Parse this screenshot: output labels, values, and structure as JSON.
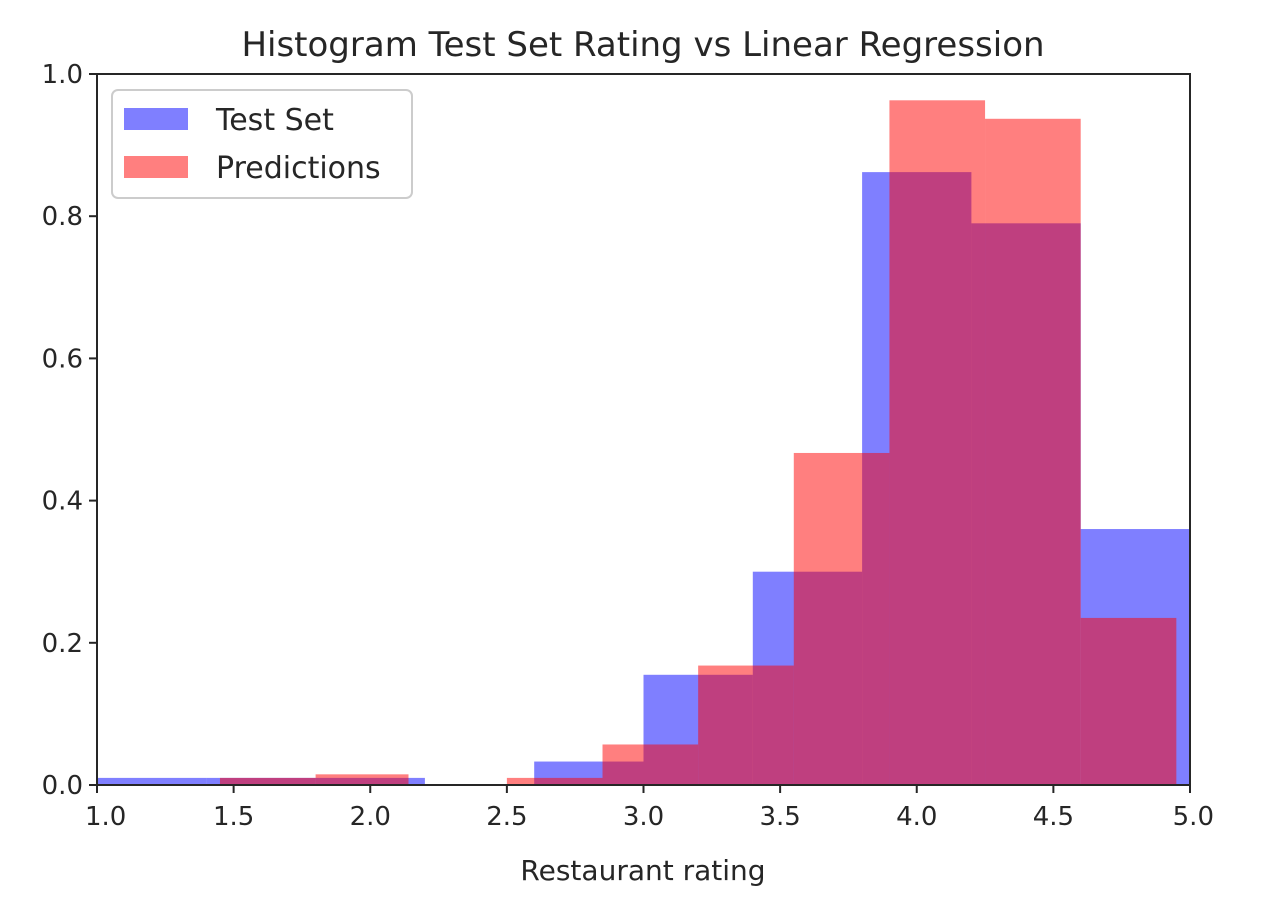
{
  "chart_data": {
    "type": "bar",
    "title": "Histogram Test Set Rating vs Linear Regression",
    "xlabel": "Restaurant rating",
    "ylabel": "",
    "xlim": [
      1.0,
      5.0
    ],
    "ylim": [
      0.0,
      1.0
    ],
    "xticks": [
      "1.0",
      "1.5",
      "2.0",
      "2.5",
      "3.0",
      "3.5",
      "4.0",
      "4.5",
      "5.0"
    ],
    "yticks": [
      "0.0",
      "0.2",
      "0.4",
      "0.6",
      "0.8",
      "1.0"
    ],
    "legend_position": "top-left",
    "grid": false,
    "series": [
      {
        "name": "Test Set",
        "color": "#0000ff",
        "opacity": 0.5,
        "bins": [
          {
            "x0": 1.0,
            "x1": 1.4,
            "value": 0.01
          },
          {
            "x0": 1.4,
            "x1": 1.8,
            "value": 0.01
          },
          {
            "x0": 1.8,
            "x1": 2.2,
            "value": 0.01
          },
          {
            "x0": 2.2,
            "x1": 2.6,
            "value": 0.0
          },
          {
            "x0": 2.6,
            "x1": 3.0,
            "value": 0.033
          },
          {
            "x0": 3.0,
            "x1": 3.4,
            "value": 0.155
          },
          {
            "x0": 3.4,
            "x1": 3.8,
            "value": 0.3
          },
          {
            "x0": 3.8,
            "x1": 4.2,
            "value": 0.862
          },
          {
            "x0": 4.2,
            "x1": 4.6,
            "value": 0.79
          },
          {
            "x0": 4.6,
            "x1": 5.0,
            "value": 0.36
          }
        ]
      },
      {
        "name": "Predictions",
        "color": "#ff0000",
        "opacity": 0.5,
        "bins": [
          {
            "x0": 1.08,
            "x1": 1.45,
            "value": 0.0
          },
          {
            "x0": 1.45,
            "x1": 1.8,
            "value": 0.01
          },
          {
            "x0": 1.8,
            "x1": 2.14,
            "value": 0.015
          },
          {
            "x0": 2.14,
            "x1": 2.5,
            "value": 0.0
          },
          {
            "x0": 2.5,
            "x1": 2.85,
            "value": 0.01
          },
          {
            "x0": 2.85,
            "x1": 3.2,
            "value": 0.057
          },
          {
            "x0": 3.2,
            "x1": 3.55,
            "value": 0.168
          },
          {
            "x0": 3.55,
            "x1": 3.9,
            "value": 0.467
          },
          {
            "x0": 3.9,
            "x1": 4.25,
            "value": 0.963
          },
          {
            "x0": 4.25,
            "x1": 4.6,
            "value": 0.937
          },
          {
            "x0": 4.6,
            "x1": 4.95,
            "value": 0.235
          }
        ]
      }
    ]
  }
}
